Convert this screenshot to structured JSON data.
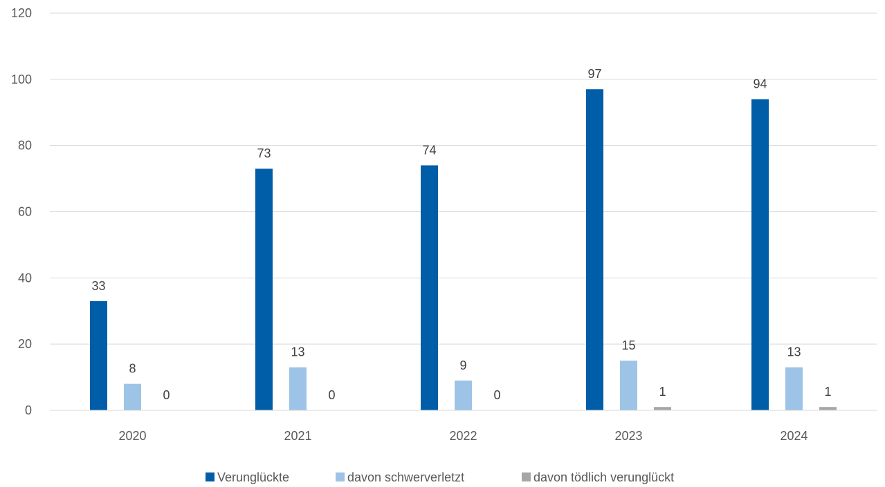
{
  "chart_data": {
    "type": "bar",
    "categories": [
      "2020",
      "2021",
      "2022",
      "2023",
      "2024"
    ],
    "series": [
      {
        "name": "Verunglückte",
        "values": [
          33,
          73,
          74,
          97,
          94
        ],
        "color": "#005DA8"
      },
      {
        "name": "davon schwerverletzt",
        "values": [
          8,
          13,
          9,
          15,
          13
        ],
        "color": "#9DC3E6"
      },
      {
        "name": "davon tödlich verunglückt",
        "values": [
          0,
          0,
          0,
          1,
          1
        ],
        "color": "#A6A6A6"
      }
    ],
    "y_ticks": [
      "0",
      "20",
      "40",
      "60",
      "80",
      "100",
      "120"
    ],
    "ylim": [
      0,
      120
    ],
    "grid": true,
    "legend_position": "bottom",
    "data_labels": true,
    "gridline_color": "#D9D9D9"
  }
}
